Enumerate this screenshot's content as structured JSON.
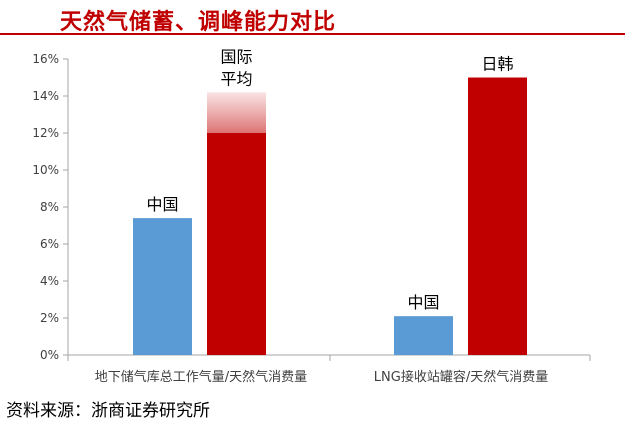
{
  "title": "天然气储蓄、调峰能力对比",
  "source": "资料来源：浙商证券研究所",
  "colors": {
    "title_red": "#c00000",
    "china_blue": "#5b9bd5",
    "other_red": "#c00000",
    "gradient_light": "#f4c7c7"
  },
  "chart_data": {
    "type": "bar",
    "categories": [
      "地下储气库总工作气量/天然气消费量",
      "LNG接收站罐容/天然气消费量"
    ],
    "ylim": [
      0,
      16
    ],
    "yticks": [
      "0%",
      "2%",
      "4%",
      "6%",
      "8%",
      "10%",
      "12%",
      "14%",
      "16%"
    ],
    "grid": false,
    "groups": [
      {
        "category": "地下储气库总工作气量/天然气消费量",
        "bars": [
          {
            "label": "中国",
            "value": 7.4,
            "color": "#5b9bd5"
          },
          {
            "label_lines": [
              "国际",
              "平均"
            ],
            "value": 12.0,
            "range_high": 14.2,
            "color": "#c00000"
          }
        ]
      },
      {
        "category": "LNG接收站罐容/天然气消费量",
        "bars": [
          {
            "label": "中国",
            "value": 2.1,
            "color": "#5b9bd5"
          },
          {
            "label": "日韩",
            "value": 15.0,
            "color": "#c00000"
          }
        ]
      }
    ]
  }
}
